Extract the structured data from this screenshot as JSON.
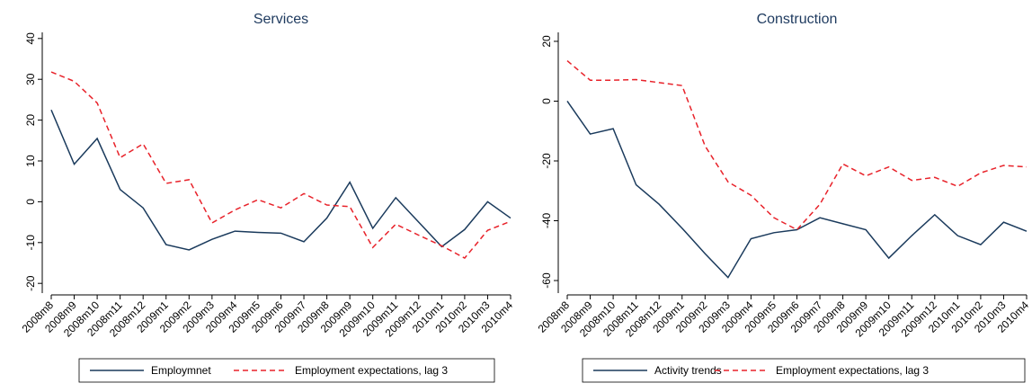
{
  "chart_data": [
    {
      "type": "line",
      "title": "Services",
      "categories": [
        "2008m8",
        "2008m9",
        "2008m10",
        "2008m11",
        "2008m12",
        "2009m1",
        "2009m2",
        "2009m3",
        "2009m4",
        "2009m5",
        "2009m6",
        "2009m7",
        "2009m8",
        "2009m9",
        "2009m10",
        "2009m11",
        "2009m12",
        "2010m1",
        "2010m2",
        "2010m3",
        "2010m4"
      ],
      "series": [
        {
          "name": "Employmnet",
          "color": "#1a3a5c",
          "style": "solid",
          "values": [
            22.5,
            9.2,
            15.5,
            3,
            -1.5,
            -10.5,
            -11.8,
            -9.2,
            -7.2,
            -7.5,
            -7.7,
            -9.8,
            -4,
            4.8,
            -6.5,
            1,
            -5,
            -11,
            -6.8,
            0,
            -4
          ]
        },
        {
          "name": "Employment expectations, lag 3",
          "color": "#e8222a",
          "style": "dashed",
          "values": [
            31.8,
            29.5,
            24.2,
            10.8,
            14.2,
            4.5,
            5.4,
            -5.2,
            -2,
            0.5,
            -1.5,
            2,
            -0.8,
            -1.2,
            -11.2,
            -5.5,
            -8.2,
            -10.8,
            -13.8,
            -7,
            -4.8
          ]
        }
      ],
      "ylim": [
        -21.5,
        41.5
      ],
      "yticks": [
        -20,
        -10,
        0,
        10,
        20,
        30,
        40
      ]
    },
    {
      "type": "line",
      "title": "Construction",
      "categories": [
        "2008m8",
        "2008m9",
        "2008m10",
        "2008m11",
        "2008m12",
        "2009m1",
        "2009m2",
        "2009m3",
        "2009m4",
        "2009m5",
        "2009m6",
        "2009m7",
        "2009m8",
        "2009m9",
        "2009m10",
        "2009m11",
        "2009m12",
        "2010m1",
        "2010m2",
        "2010m3",
        "2010m4"
      ],
      "series": [
        {
          "name": "Activity trends",
          "color": "#1a3a5c",
          "style": "solid",
          "values": [
            0,
            -11,
            -9.2,
            -28,
            -34.5,
            -42.5,
            -51,
            -59,
            -46,
            -44,
            -43,
            -39,
            -41,
            -43,
            -52.5,
            -45,
            -38,
            -45,
            -48,
            -40.5,
            -43.5
          ]
        },
        {
          "name": "Employment expectations, lag 3",
          "color": "#e8222a",
          "style": "dashed",
          "values": [
            13.5,
            7,
            7,
            7.2,
            6.2,
            5.2,
            -15,
            -27,
            -31.5,
            -39,
            -43,
            -34.5,
            -21,
            -25,
            -22,
            -26.5,
            -25.5,
            -28.5,
            -24,
            -21.5,
            -22
          ]
        }
      ],
      "ylim": [
        -63,
        23
      ],
      "yticks": [
        -60,
        -40,
        -20,
        0,
        20
      ]
    }
  ]
}
